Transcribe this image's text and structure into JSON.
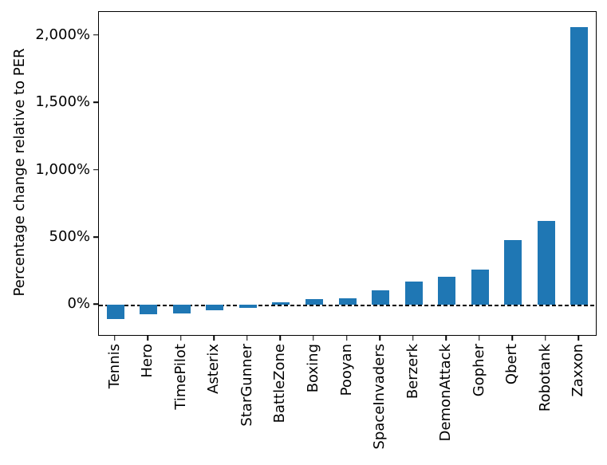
{
  "chart_data": {
    "type": "bar",
    "title": "",
    "xlabel": "",
    "ylabel": "Percentage change relative to PER",
    "categories": [
      "Tennis",
      "Hero",
      "TimePilot",
      "Asterix",
      "StarGunner",
      "BattleZone",
      "Boxing",
      "Pooyan",
      "SpaceInvaders",
      "Berzerk",
      "DemonAttack",
      "Gopher",
      "Qbert",
      "Robotank",
      "Zaxxon"
    ],
    "values": [
      -105,
      -68,
      -60,
      -38,
      -20,
      20,
      45,
      50,
      108,
      172,
      208,
      262,
      480,
      622,
      2062
    ],
    "unit": "%",
    "ylim": [
      -222,
      2175
    ],
    "yticks": [
      0,
      500,
      1000,
      1500,
      2000
    ],
    "ytick_labels": [
      "0%",
      "500%",
      "1,000%",
      "1,500%",
      "2,000%"
    ],
    "bar_color": "#1f77b4",
    "zero_line": {
      "style": "dashed",
      "color": "#000000",
      "y": 0
    },
    "grid": false,
    "legend_position": "none"
  }
}
